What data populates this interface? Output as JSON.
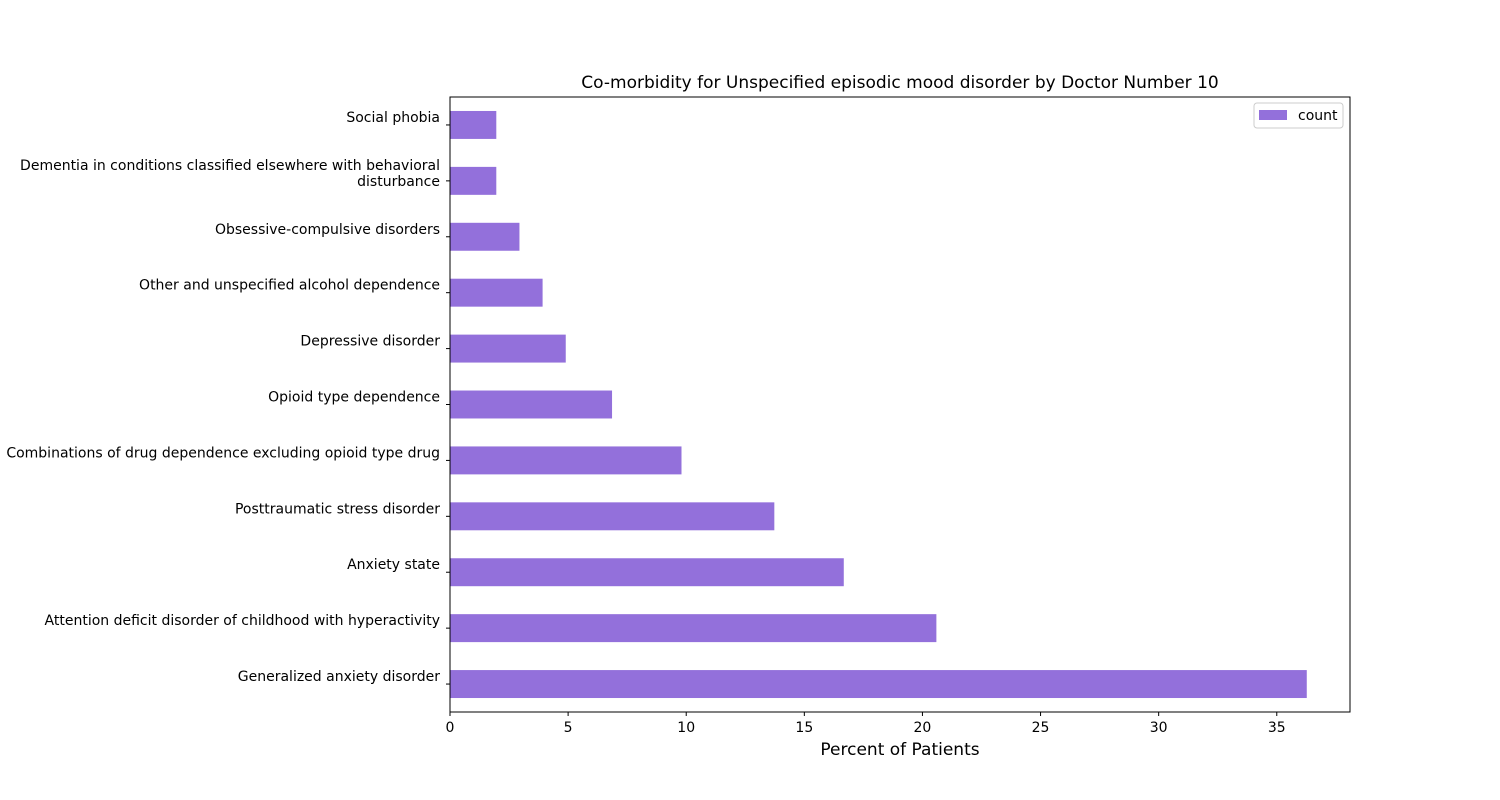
{
  "chart_data": {
    "type": "bar",
    "orientation": "horizontal",
    "title": "Co-morbidity for Unspecified episodic mood disorder by Doctor Number 10",
    "xlabel": "Percent of Patients",
    "ylabel": "",
    "xlim": [
      0,
      38.1
    ],
    "xticks": [
      0,
      5,
      10,
      15,
      20,
      25,
      30,
      35
    ],
    "grid": false,
    "legend_position": "top-right",
    "bar_color": "#9370DB",
    "categories": [
      "Generalized anxiety disorder",
      "Attention deficit disorder of childhood with hyperactivity",
      "Anxiety state",
      "Posttraumatic stress disorder",
      "Combinations of drug dependence excluding opioid type drug",
      "Opioid type dependence",
      "Depressive disorder",
      "Other and unspecified alcohol dependence",
      "Obsessive-compulsive disorders",
      "Dementia in conditions classified elsewhere with behavioral disturbance",
      "Social phobia"
    ],
    "category_display_lines": [
      [
        "Generalized anxiety disorder"
      ],
      [
        "Attention deficit disorder of childhood with hyperactivity"
      ],
      [
        "Anxiety state"
      ],
      [
        "Posttraumatic stress disorder"
      ],
      [
        "Combinations of drug dependence excluding opioid type drug"
      ],
      [
        "Opioid type dependence"
      ],
      [
        "Depressive disorder"
      ],
      [
        "Other and unspecified alcohol dependence"
      ],
      [
        "Obsessive-compulsive disorders"
      ],
      [
        "Dementia in conditions classified elsewhere with behavioral",
        "disturbance"
      ],
      [
        "Social phobia"
      ]
    ],
    "series": [
      {
        "name": "count",
        "values": [
          36.27,
          20.59,
          16.67,
          13.73,
          9.8,
          6.86,
          4.9,
          3.92,
          2.94,
          1.96,
          1.96
        ]
      }
    ]
  }
}
